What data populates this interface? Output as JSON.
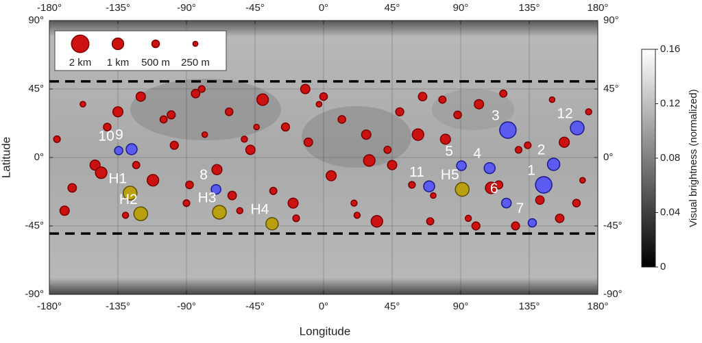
{
  "chart_data": {
    "type": "scatter",
    "xlabel": "Longitude",
    "ylabel": "Latitude",
    "xlim": [
      -180,
      180
    ],
    "ylim": [
      -90,
      90
    ],
    "xticks": [
      {
        "value": -180,
        "label": "-180°"
      },
      {
        "value": -135,
        "label": "-135°"
      },
      {
        "value": -90,
        "label": "-90°"
      },
      {
        "value": -45,
        "label": "-45°"
      },
      {
        "value": 0,
        "label": "0°"
      },
      {
        "value": 45,
        "label": "45°"
      },
      {
        "value": 90,
        "label": "90°"
      },
      {
        "value": 135,
        "label": "135°"
      },
      {
        "value": 180,
        "label": "180°"
      }
    ],
    "yticks": [
      {
        "value": -90,
        "label": "-90°"
      },
      {
        "value": -45,
        "label": "-45°"
      },
      {
        "value": 0,
        "label": "0°"
      },
      {
        "value": 45,
        "label": "45°"
      },
      {
        "value": 90,
        "label": "90°"
      }
    ],
    "grid": true,
    "reference_lines": [
      50,
      -50
    ],
    "size_legend": [
      {
        "value": 2,
        "label": "2 km"
      },
      {
        "value": 1,
        "label": "1 km"
      },
      {
        "value": 0.5,
        "label": "500 m"
      },
      {
        "value": 0.25,
        "label": "250 m"
      }
    ],
    "colorbar": {
      "label": "Visual brightness (normalized)",
      "lim": [
        0,
        0.16
      ],
      "ticks": [
        0,
        0.04,
        0.08,
        0.12,
        0.16
      ]
    },
    "series": [
      {
        "color": "#cc1111",
        "x": [
          -175,
          -165,
          -158,
          -150,
          -142,
          -130,
          -120,
          -112,
          -105,
          -98,
          -90,
          -84,
          -78,
          -70,
          -62,
          -55,
          -48,
          -40,
          -33,
          -25,
          -18,
          -10,
          -3,
          5,
          12,
          20,
          28,
          35,
          42,
          50,
          58,
          65,
          72,
          80,
          88,
          95,
          102,
          110,
          118,
          126,
          134,
          142,
          150,
          158,
          166,
          174,
          -170,
          -146,
          -123,
          -100,
          -80,
          -60,
          -44,
          -20,
          0,
          22,
          45,
          62,
          78,
          100,
          128,
          155,
          170,
          -135,
          -88,
          -52,
          -12,
          30,
          70,
          115
        ],
        "y": [
          12,
          -20,
          35,
          -5,
          20,
          -38,
          40,
          -15,
          25,
          8,
          -30,
          42,
          15,
          -8,
          30,
          -35,
          5,
          38,
          -22,
          20,
          -40,
          10,
          35,
          -12,
          25,
          -30,
          15,
          -42,
          5,
          30,
          -18,
          40,
          -25,
          12,
          28,
          -40,
          35,
          -20,
          42,
          -45,
          8,
          -28,
          38,
          10,
          -30,
          30,
          -35,
          -10,
          -5,
          28,
          45,
          -25,
          20,
          -30,
          40,
          -38,
          -5,
          15,
          38,
          -45,
          5,
          -40,
          -15,
          30,
          -18,
          12,
          45,
          -2,
          -42,
          -18
        ],
        "sizes": [
          0.4,
          0.6,
          0.3,
          0.8,
          0.5,
          0.35,
          0.7,
          1.0,
          0.45,
          0.55,
          0.4,
          0.6,
          0.3,
          0.8,
          0.5,
          0.35,
          0.7,
          1.0,
          0.45,
          0.55,
          0.4,
          0.6,
          0.3,
          0.8,
          0.5,
          0.35,
          0.7,
          1.0,
          0.45,
          0.55,
          0.4,
          0.6,
          0.3,
          0.8,
          0.5,
          0.35,
          0.7,
          1.0,
          0.45,
          0.55,
          0.4,
          0.6,
          0.3,
          0.8,
          0.5,
          0.35,
          0.7,
          1.0,
          0.45,
          0.55,
          0.4,
          0.6,
          0.3,
          0.8,
          0.5,
          0.35,
          0.7,
          1.0,
          0.45,
          0.55,
          0.4,
          0.6,
          0.3,
          0.8,
          0.5,
          0.35,
          0.7,
          1.0,
          0.45,
          0.55
        ]
      },
      {
        "color": "#5b5bf0",
        "x": [
          144.5,
          151,
          121,
          109,
          90.5,
          120,
          137,
          -70.6,
          -126,
          -134.5,
          69.3,
          166.5
        ],
        "y": [
          -18,
          -4.5,
          18,
          -7,
          -5.4,
          -30,
          -43,
          -21,
          5.4,
          4.5,
          -19,
          19.4
        ],
        "sizes": [
          1.81,
          1.12,
          1.81,
          0.92,
          0.74,
          0.74,
          0.57,
          0.74,
          0.92,
          0.57,
          0.92,
          1.34
        ],
        "labels": [
          "1",
          "2",
          "3",
          "4",
          "5",
          "6",
          "7",
          "8",
          "9",
          "10",
          "11",
          "12"
        ]
      },
      {
        "color": "#b9a010",
        "x": [
          -127,
          -120,
          -68.4,
          -33.8,
          91
        ],
        "y": [
          -23.4,
          -37,
          -36,
          -43.6,
          -21
        ],
        "sizes": [
          1.34,
          1.34,
          1.34,
          1.12,
          1.34
        ],
        "labels": [
          "H1",
          "H2",
          "H3",
          "H4",
          "H5"
        ]
      }
    ]
  }
}
